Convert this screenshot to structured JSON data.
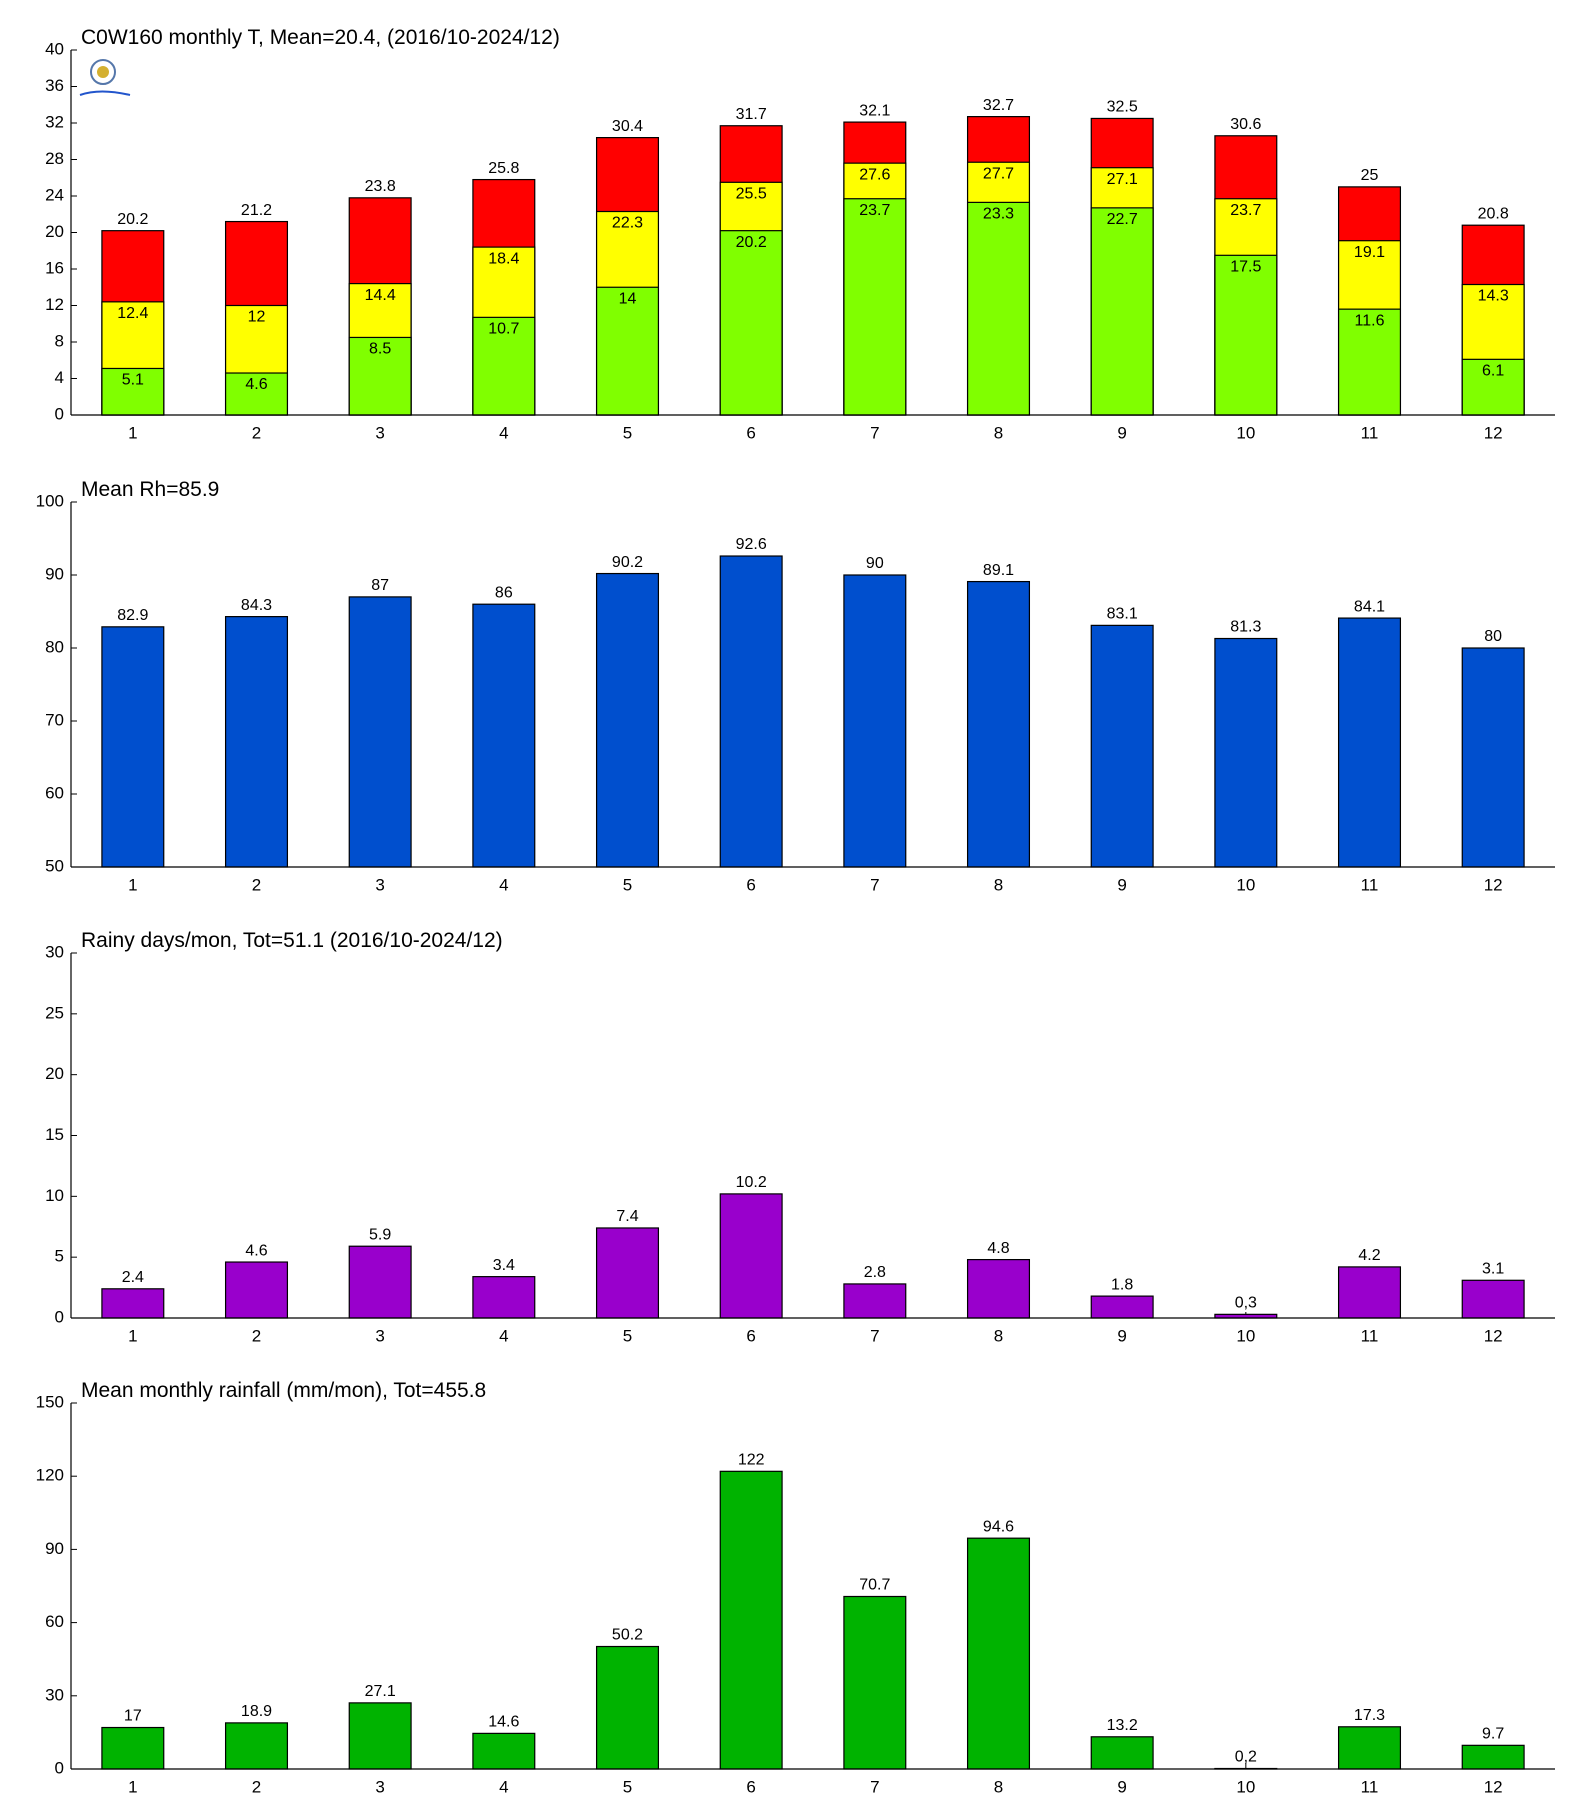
{
  "chart_data": [
    {
      "type": "bar",
      "barmode": "overlay",
      "title": "C0W160 monthly T, Mean=20.4, (2016/10-2024/12)",
      "categories": [
        "1",
        "2",
        "3",
        "4",
        "5",
        "6",
        "7",
        "8",
        "9",
        "10",
        "11",
        "12"
      ],
      "series": [
        {
          "color": "#ff0000",
          "values": [
            20.2,
            21.2,
            23.8,
            25.8,
            30.4,
            31.7,
            32.1,
            32.7,
            32.5,
            30.6,
            25,
            20.8
          ]
        },
        {
          "color": "#ffff00",
          "values": [
            12.4,
            12,
            14.4,
            18.4,
            22.3,
            25.5,
            27.6,
            27.7,
            27.1,
            23.7,
            19.1,
            14.3
          ]
        },
        {
          "color": "#80ff00",
          "values": [
            5.1,
            4.6,
            8.5,
            10.7,
            14,
            20.2,
            23.7,
            23.3,
            22.7,
            17.5,
            11.6,
            6.1
          ]
        }
      ],
      "ylim": [
        0,
        40
      ],
      "yticks": [
        0,
        4,
        8,
        12,
        16,
        20,
        24,
        28,
        32,
        36,
        40
      ]
    },
    {
      "type": "bar",
      "title": "Mean Rh=85.9",
      "categories": [
        "1",
        "2",
        "3",
        "4",
        "5",
        "6",
        "7",
        "8",
        "9",
        "10",
        "11",
        "12"
      ],
      "color": "#004fce",
      "values": [
        82.9,
        84.3,
        87,
        86,
        90.2,
        92.6,
        90,
        89.1,
        83.1,
        81.3,
        84.1,
        80
      ],
      "ylim": [
        50,
        100
      ],
      "yticks": [
        50,
        60,
        70,
        80,
        90,
        100
      ]
    },
    {
      "type": "bar",
      "title": "Rainy days/mon, Tot=51.1 (2016/10-2024/12)",
      "categories": [
        "1",
        "2",
        "3",
        "4",
        "5",
        "6",
        "7",
        "8",
        "9",
        "10",
        "11",
        "12"
      ],
      "color": "#9900cc",
      "values": [
        2.4,
        4.6,
        5.9,
        3.4,
        7.4,
        10.2,
        2.8,
        4.8,
        1.8,
        0.3,
        4.2,
        3.1
      ],
      "value_labels": [
        "2.4",
        "4.6",
        "5.9",
        "3.4",
        "7.4",
        "10.2",
        "2.8",
        "4.8",
        "1.8",
        "0,3",
        "4.2",
        "3.1"
      ],
      "ylim": [
        0,
        30
      ],
      "yticks": [
        0,
        5,
        10,
        15,
        20,
        25,
        30
      ]
    },
    {
      "type": "bar",
      "title": "Mean monthly rainfall (mm/mon), Tot=455.8",
      "categories": [
        "1",
        "2",
        "3",
        "4",
        "5",
        "6",
        "7",
        "8",
        "9",
        "10",
        "11",
        "12"
      ],
      "color": "#00b300",
      "values": [
        17,
        18.9,
        27.1,
        14.6,
        50.2,
        122,
        70.7,
        94.6,
        13.2,
        0.2,
        17.3,
        9.7
      ],
      "value_labels": [
        "17",
        "18.9",
        "27.1",
        "14.6",
        "50.2",
        "122",
        "70.7",
        "94.6",
        "13.2",
        "0,2",
        "17.3",
        "9.7"
      ],
      "ylim": [
        0,
        150
      ],
      "yticks": [
        0,
        30,
        60,
        90,
        120,
        150
      ]
    }
  ]
}
